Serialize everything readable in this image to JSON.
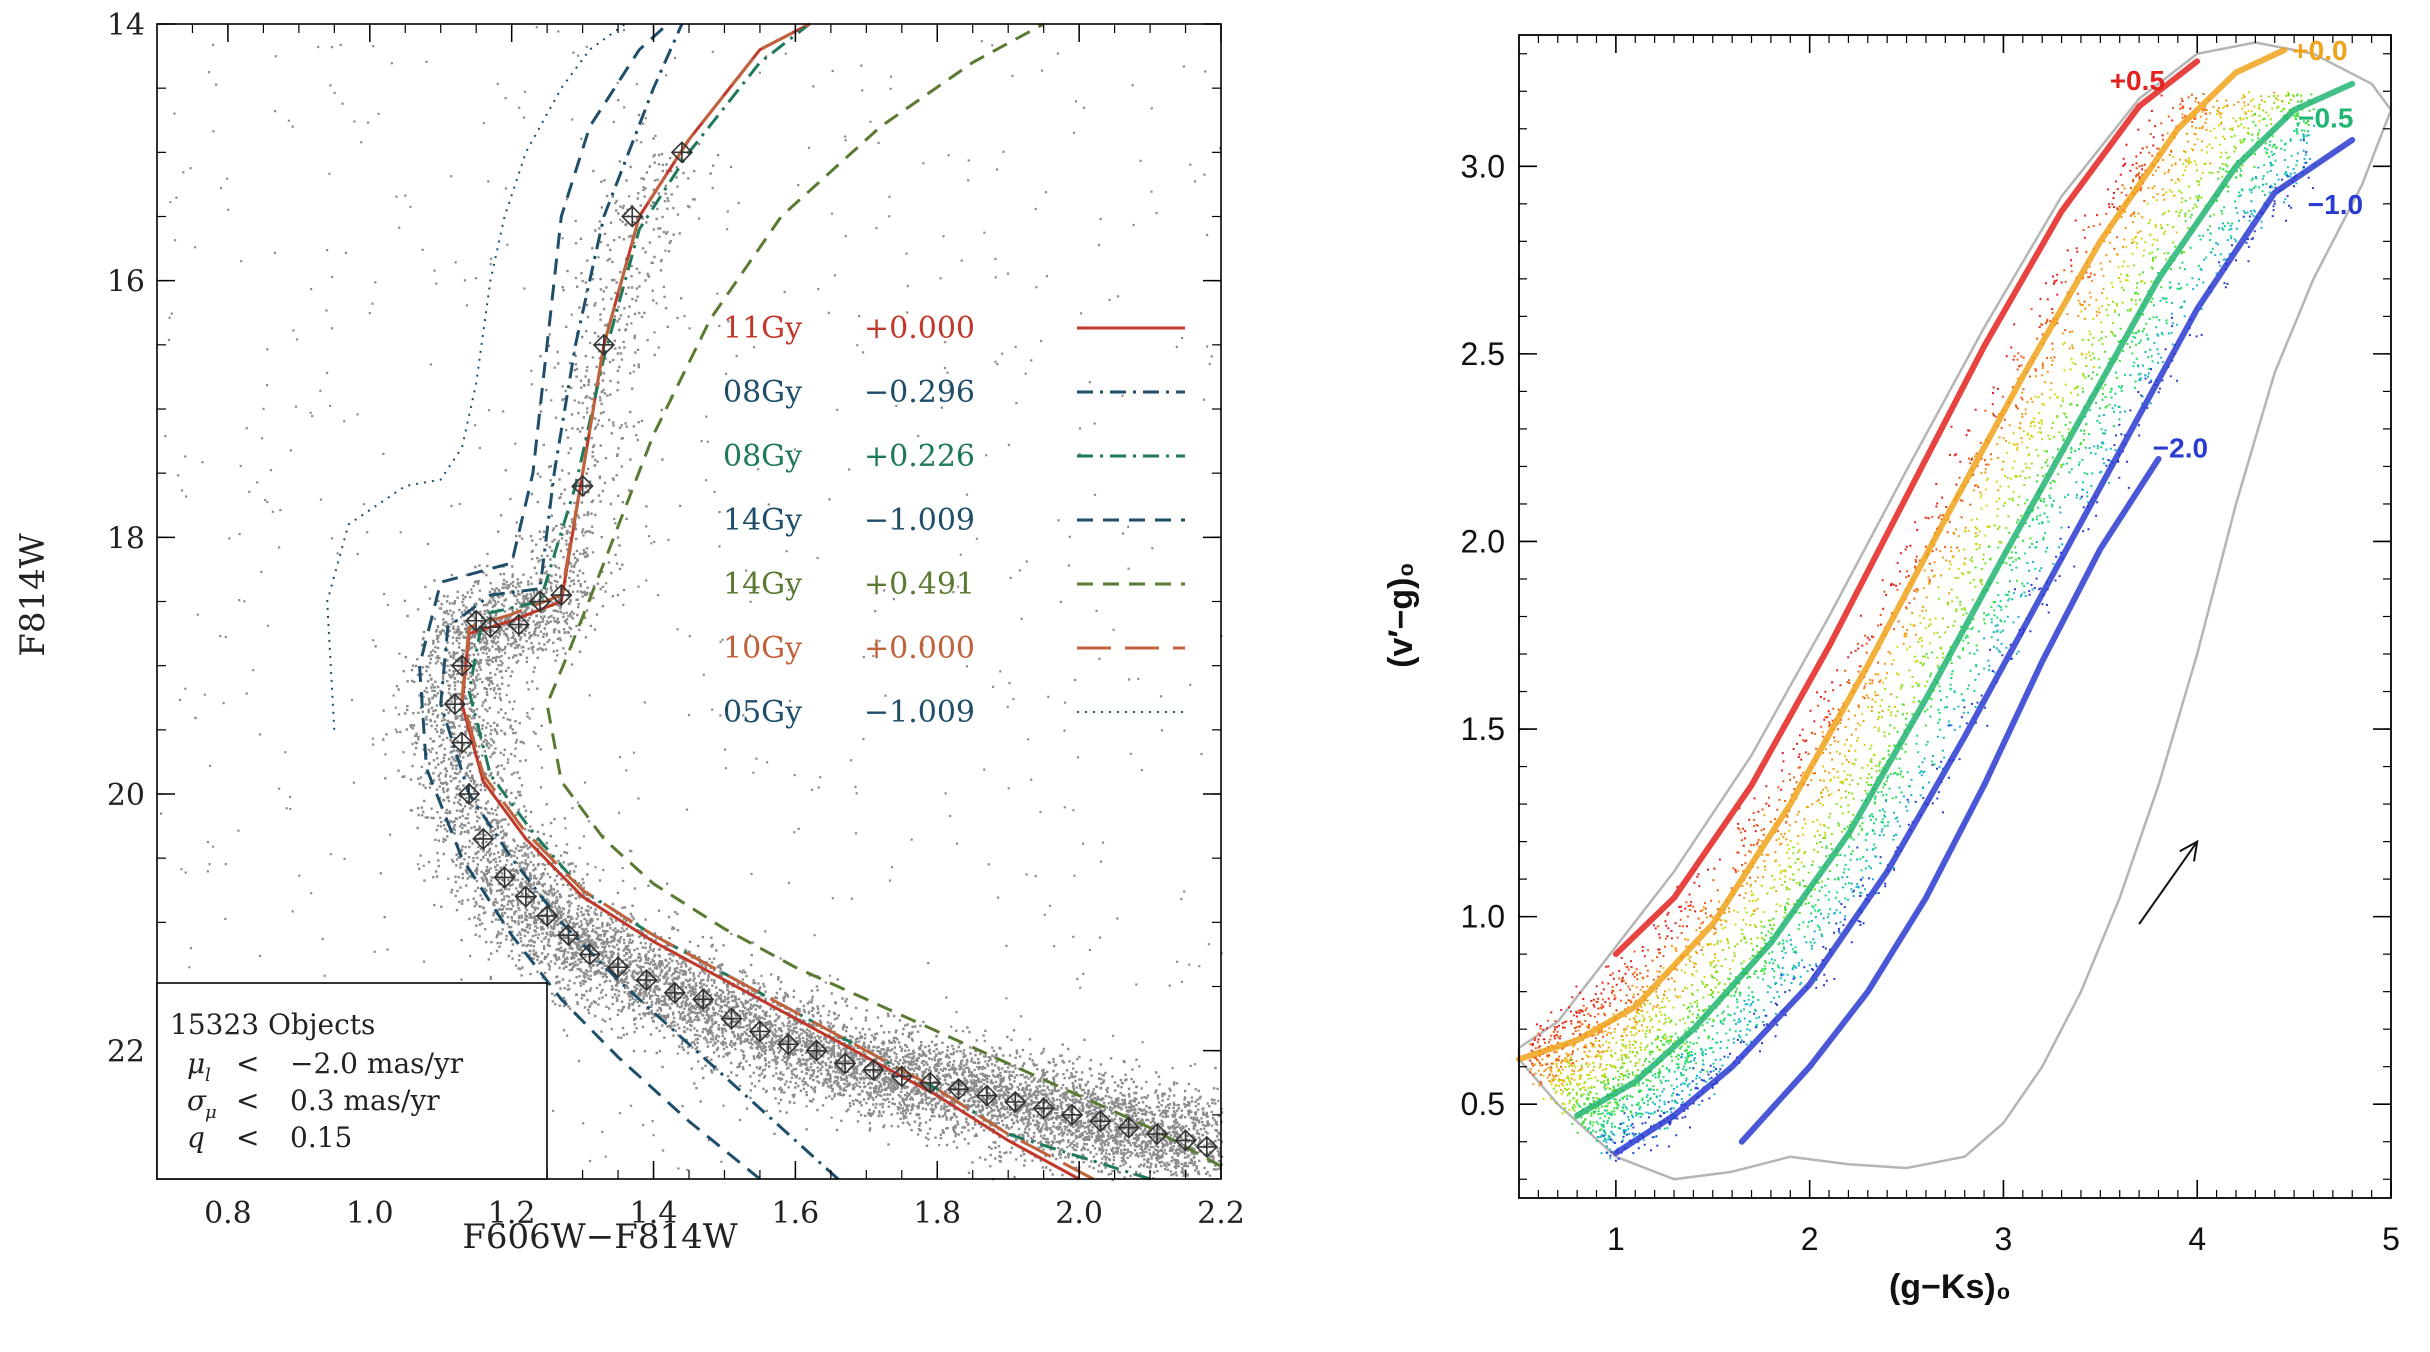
{
  "chart_data": [
    {
      "type": "scatter",
      "name": "cmd-f814w",
      "xlabel": "F606W−F814W",
      "ylabel": "F814W",
      "xlim": [
        0.7,
        2.2
      ],
      "ylim": [
        23.0,
        14.0
      ],
      "xticks": [
        0.8,
        1.0,
        1.2,
        1.4,
        1.6,
        1.8,
        2.0,
        2.2
      ],
      "xtick_labels": [
        "0.8",
        "1.0",
        "1.2",
        "1.4",
        "1.6",
        "1.8",
        "2.0",
        "2.2"
      ],
      "yticks": [
        14,
        16,
        18,
        20,
        22
      ],
      "ytick_labels": [
        "14",
        "16",
        "18",
        "20",
        "22"
      ],
      "legend": [
        {
          "age": "11Gy",
          "feh": "+0.000",
          "style": "solid",
          "color": "#c0392b"
        },
        {
          "age": "08Gy",
          "feh": "−0.296",
          "style": "dashdot",
          "color": "#1f4e6b"
        },
        {
          "age": "08Gy",
          "feh": "+0.226",
          "style": "dashdot",
          "color": "#1e7a5a"
        },
        {
          "age": "14Gy",
          "feh": "−1.009",
          "style": "dashed",
          "color": "#1f4e6b"
        },
        {
          "age": "14Gy",
          "feh": "+0.491",
          "style": "dashed",
          "color": "#5a7a32"
        },
        {
          "age": "10Gy",
          "feh": "+0.000",
          "style": "longdash",
          "color": "#c0623b"
        },
        {
          "age": "05Gy",
          "feh": "−1.009",
          "style": "dotted",
          "color": "#1f4e6b"
        }
      ],
      "isochrones": [
        {
          "name": "11Gy +0.000",
          "x": [
            2.0,
            1.9,
            1.8,
            1.7,
            1.6,
            1.5,
            1.4,
            1.3,
            1.22,
            1.16,
            1.13,
            1.14,
            1.2,
            1.27,
            1.3,
            1.33,
            1.38,
            1.45,
            1.55,
            1.62
          ],
          "y": [
            23.0,
            22.7,
            22.35,
            22.05,
            21.75,
            21.45,
            21.15,
            20.8,
            20.35,
            19.9,
            19.3,
            18.75,
            18.65,
            18.5,
            17.5,
            16.5,
            15.5,
            14.9,
            14.2,
            14.0
          ]
        },
        {
          "name": "08Gy -0.296",
          "x": [
            1.66,
            1.55,
            1.45,
            1.35,
            1.27,
            1.2,
            1.14,
            1.1,
            1.11,
            1.17,
            1.24,
            1.26,
            1.29,
            1.33,
            1.4,
            1.44
          ],
          "y": [
            23.0,
            22.45,
            21.95,
            21.45,
            21.0,
            20.5,
            20.0,
            19.3,
            18.7,
            18.45,
            18.4,
            17.5,
            16.5,
            15.5,
            14.5,
            14.0
          ]
        },
        {
          "name": "08Gy +0.226",
          "x": [
            2.1,
            1.9,
            1.8,
            1.7,
            1.6,
            1.5,
            1.4,
            1.3,
            1.23,
            1.17,
            1.14,
            1.16,
            1.24,
            1.29,
            1.33,
            1.38,
            1.45,
            1.55,
            1.62
          ],
          "y": [
            23.0,
            22.65,
            22.3,
            22.0,
            21.7,
            21.4,
            21.1,
            20.75,
            20.3,
            19.85,
            19.2,
            18.6,
            18.5,
            17.6,
            16.6,
            15.6,
            15.0,
            14.3,
            14.0
          ]
        },
        {
          "name": "14Gy -1.009",
          "x": [
            1.55,
            1.45,
            1.35,
            1.27,
            1.2,
            1.13,
            1.08,
            1.07,
            1.1,
            1.2,
            1.23,
            1.25,
            1.27,
            1.31,
            1.38,
            1.42
          ],
          "y": [
            23.0,
            22.55,
            22.05,
            21.6,
            21.1,
            20.5,
            19.8,
            19.0,
            18.35,
            18.2,
            17.5,
            16.5,
            15.5,
            14.8,
            14.2,
            14.0
          ]
        },
        {
          "name": "14Gy +0.491",
          "x": [
            2.2,
            2.1,
            2.0,
            1.9,
            1.8,
            1.7,
            1.6,
            1.5,
            1.4,
            1.33,
            1.27,
            1.25,
            1.28,
            1.33,
            1.4,
            1.48,
            1.58,
            1.72,
            1.85,
            1.95
          ],
          "y": [
            22.9,
            22.6,
            22.35,
            22.1,
            21.85,
            21.6,
            21.35,
            21.05,
            20.7,
            20.35,
            19.9,
            19.3,
            18.9,
            18.2,
            17.2,
            16.3,
            15.5,
            14.8,
            14.3,
            14.0
          ]
        },
        {
          "name": "10Gy +0.000",
          "x": [
            2.02,
            1.9,
            1.8,
            1.7,
            1.6,
            1.5,
            1.4,
            1.3,
            1.22,
            1.16,
            1.13,
            1.14,
            1.2,
            1.27,
            1.3,
            1.33,
            1.38,
            1.45,
            1.55,
            1.62
          ],
          "y": [
            23.0,
            22.65,
            22.3,
            22.0,
            21.7,
            21.4,
            21.1,
            20.75,
            20.3,
            19.85,
            19.25,
            18.7,
            18.6,
            18.45,
            17.5,
            16.5,
            15.5,
            14.9,
            14.2,
            14.0
          ]
        },
        {
          "name": "05Gy -1.009",
          "x": [
            0.95,
            0.94,
            0.97,
            1.05,
            1.1,
            1.13,
            1.15,
            1.17,
            1.19,
            1.22,
            1.27,
            1.31,
            1.36
          ],
          "y": [
            19.5,
            18.5,
            17.9,
            17.6,
            17.55,
            17.3,
            16.8,
            16.0,
            15.5,
            15.0,
            14.5,
            14.2,
            14.0
          ]
        }
      ],
      "ridge_points": {
        "x": [
          1.44,
          1.37,
          1.33,
          1.3,
          1.27,
          1.24,
          1.21,
          1.17,
          1.15,
          1.13,
          1.12,
          1.13,
          1.14,
          1.16,
          1.19,
          1.22,
          1.25,
          1.28,
          1.31,
          1.35,
          1.39,
          1.43,
          1.47,
          1.51,
          1.55,
          1.59,
          1.63,
          1.67,
          1.71,
          1.75,
          1.79,
          1.83,
          1.87,
          1.91,
          1.95,
          1.99,
          2.03,
          2.07,
          2.11,
          2.15,
          2.18
        ],
        "y": [
          15.0,
          15.5,
          16.5,
          17.6,
          18.45,
          18.5,
          18.68,
          18.7,
          18.65,
          19.0,
          19.3,
          19.6,
          20.0,
          20.35,
          20.65,
          20.8,
          20.95,
          21.1,
          21.25,
          21.35,
          21.45,
          21.55,
          21.6,
          21.75,
          21.85,
          21.95,
          22.0,
          22.1,
          22.15,
          22.2,
          22.25,
          22.3,
          22.35,
          22.4,
          22.45,
          22.5,
          22.55,
          22.6,
          22.65,
          22.7,
          22.75
        ]
      },
      "info_box": {
        "objects": "15323 Objects",
        "rows": [
          {
            "sym": "μ",
            "sub": "l",
            "op": "<",
            "value": "−2.0 mas/yr"
          },
          {
            "sym": "σ",
            "sub": "μ",
            "op": "<",
            "value": "0.3 mas/yr"
          },
          {
            "sym": "q",
            "sub": "",
            "op": "<",
            "value": "0.15"
          }
        ]
      }
    },
    {
      "type": "scatter",
      "name": "color-color",
      "xlabel": "(g−Ks)₀",
      "ylabel": "(v′−g)₀",
      "xlim": [
        0.5,
        5.0
      ],
      "ylim": [
        0.25,
        3.35
      ],
      "xticks": [
        1,
        2,
        3,
        4,
        5
      ],
      "xtick_labels": [
        "1",
        "2",
        "3",
        "4",
        "5"
      ],
      "yticks": [
        0.5,
        1.0,
        1.5,
        2.0,
        2.5,
        3.0
      ],
      "ytick_labels": [
        "0.5",
        "1.0",
        "1.5",
        "2.0",
        "2.5",
        "3.0"
      ],
      "tracks": [
        {
          "label": "+0.5",
          "color": "#e3221f",
          "x": [
            1.0,
            1.3,
            1.7,
            2.1,
            2.5,
            2.9,
            3.3,
            3.7,
            4.0
          ],
          "y": [
            0.9,
            1.05,
            1.35,
            1.72,
            2.12,
            2.52,
            2.88,
            3.16,
            3.28
          ]
        },
        {
          "label": "+0.0",
          "color": "#f0a31a",
          "x": [
            0.5,
            0.8,
            1.1,
            1.5,
            1.9,
            2.3,
            2.7,
            3.1,
            3.5,
            3.9,
            4.2,
            4.45
          ],
          "y": [
            0.62,
            0.67,
            0.76,
            0.98,
            1.3,
            1.67,
            2.06,
            2.44,
            2.8,
            3.1,
            3.25,
            3.31
          ]
        },
        {
          "label": "−0.5",
          "color": "#22b573",
          "x": [
            0.8,
            1.1,
            1.4,
            1.8,
            2.2,
            2.6,
            3.0,
            3.4,
            3.8,
            4.2,
            4.5,
            4.8
          ],
          "y": [
            0.47,
            0.56,
            0.7,
            0.93,
            1.22,
            1.58,
            1.96,
            2.33,
            2.7,
            3.0,
            3.15,
            3.22
          ]
        },
        {
          "label": "−1.0",
          "color": "#2a3bd1",
          "x": [
            1.0,
            1.3,
            1.6,
            2.0,
            2.4,
            2.8,
            3.2,
            3.6,
            4.0,
            4.4,
            4.8
          ],
          "y": [
            0.37,
            0.47,
            0.6,
            0.82,
            1.12,
            1.48,
            1.86,
            2.24,
            2.62,
            2.93,
            3.07
          ]
        },
        {
          "label": "−2.0",
          "color": "#2a3bd1",
          "x": [
            1.65,
            2.0,
            2.3,
            2.6,
            2.9,
            3.2,
            3.5,
            3.8
          ],
          "y": [
            0.4,
            0.6,
            0.8,
            1.05,
            1.35,
            1.68,
            1.98,
            2.22
          ]
        }
      ],
      "envelope": {
        "x": [
          0.5,
          0.7,
          1.0,
          1.3,
          1.7,
          2.1,
          2.5,
          2.9,
          3.3,
          3.7,
          4.0,
          4.3,
          4.6,
          4.9,
          5.0,
          4.85,
          4.6,
          4.4,
          4.2,
          4.0,
          3.8,
          3.6,
          3.4,
          3.2,
          3.0,
          2.8,
          2.5,
          2.2,
          1.9,
          1.6,
          1.3,
          1.0,
          0.7,
          0.5
        ],
        "y": [
          0.65,
          0.72,
          0.92,
          1.12,
          1.43,
          1.8,
          2.19,
          2.57,
          2.92,
          3.18,
          3.3,
          3.33,
          3.3,
          3.22,
          3.15,
          2.95,
          2.7,
          2.45,
          2.1,
          1.7,
          1.35,
          1.05,
          0.8,
          0.6,
          0.45,
          0.36,
          0.33,
          0.34,
          0.36,
          0.32,
          0.3,
          0.36,
          0.5,
          0.62
        ]
      },
      "reddening_arrow": {
        "from": [
          3.7,
          0.98
        ],
        "to": [
          4.0,
          1.2
        ]
      }
    }
  ]
}
